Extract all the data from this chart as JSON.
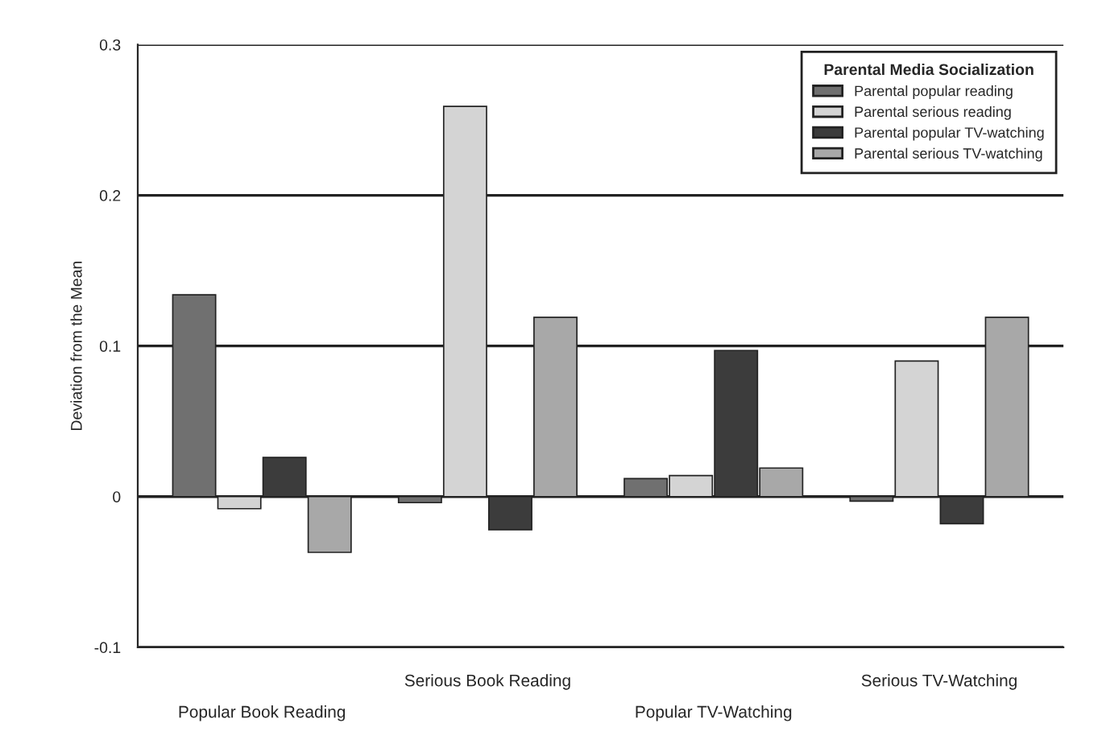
{
  "chart_data": {
    "type": "bar",
    "ylabel": "Deviation from the Mean",
    "categories": [
      "Popular Book Reading",
      "Serious Book Reading",
      "Popular TV-Watching",
      "Serious TV-Watching"
    ],
    "series": [
      {
        "name": "Parental popular reading",
        "color": "#707070",
        "values": [
          0.134,
          -0.004,
          0.012,
          -0.003
        ]
      },
      {
        "name": "Parental serious reading",
        "color": "#d4d4d4",
        "values": [
          -0.008,
          0.259,
          0.014,
          0.09
        ]
      },
      {
        "name": "Parental popular TV-watching",
        "color": "#3c3c3c",
        "values": [
          0.026,
          -0.022,
          0.097,
          -0.018
        ]
      },
      {
        "name": "Parental serious TV-watching",
        "color": "#a8a8a8",
        "values": [
          -0.037,
          0.119,
          0.019,
          0.119
        ]
      }
    ],
    "legend_title": "Parental Media Socialization",
    "legend": "top right",
    "ylim": [
      -0.1,
      0.3
    ],
    "yticks": [
      -0.1,
      0,
      0.1,
      0.2,
      0.3
    ],
    "grid": "y"
  }
}
